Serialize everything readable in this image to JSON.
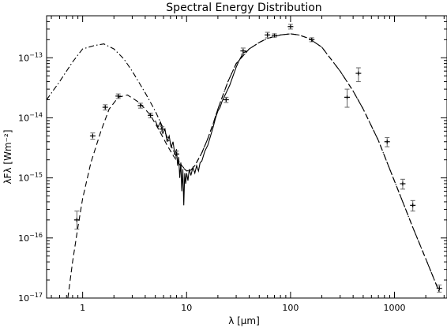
{
  "chart_data": {
    "type": "line",
    "title": "Spectral Energy Distribution",
    "xlabel": "λ [μm]",
    "ylabel": "λFλ [Wm⁻²]",
    "xscale": "log",
    "yscale": "log",
    "xlim": [
      0.45,
      3200
    ],
    "ylim": [
      1e-17,
      5e-13
    ],
    "x_ticks": [
      {
        "value": 1,
        "label": "1"
      },
      {
        "value": 10,
        "label": "10"
      },
      {
        "value": 100,
        "label": "100"
      },
      {
        "value": 1000,
        "label": "1000"
      }
    ],
    "y_ticks": [
      {
        "value": 1e-17,
        "base": "10",
        "exp": "−17"
      },
      {
        "value": 1e-16,
        "base": "10",
        "exp": "−16"
      },
      {
        "value": 1e-15,
        "base": "10",
        "exp": "−15"
      },
      {
        "value": 1e-14,
        "base": "10",
        "exp": "−14"
      },
      {
        "value": 1e-13,
        "base": "10",
        "exp": "−13"
      }
    ],
    "grid": false,
    "legend": "none",
    "series": [
      {
        "style": "dash-dot",
        "x": [
          0.45,
          0.6,
          0.8,
          1.0,
          1.3,
          1.6,
          2.0,
          2.5,
          3.0,
          4.0,
          5.0,
          6.0,
          7.0,
          8.0,
          9.0,
          10.0,
          11.0,
          12.0,
          14.0,
          16.0,
          18.0,
          20.0,
          25.0,
          30.0,
          40.0,
          50.0,
          60.0,
          80.0,
          100.0,
          120.0,
          150.0,
          200.0,
          300.0,
          400.0,
          500.0,
          700.0,
          900.0,
          1200.0,
          1500.0,
          2000.0,
          2700.0
        ],
        "y": [
          2e-14,
          4e-14,
          8.5e-14,
          1.4e-13,
          1.6e-13,
          1.7e-13,
          1.4e-13,
          9.5e-14,
          6e-14,
          2.6e-14,
          1.3e-14,
          6.5e-15,
          3.6e-15,
          2.2e-15,
          1.6e-15,
          1.3e-15,
          1.35e-15,
          1.6e-15,
          2.6e-15,
          4.5e-15,
          8e-15,
          1.4e-14,
          4e-14,
          8e-14,
          1.4e-13,
          1.8e-13,
          2.1e-13,
          2.4e-13,
          2.5e-13,
          2.4e-13,
          2.1e-13,
          1.5e-13,
          6e-14,
          2.8e-14,
          1.4e-14,
          4.2e-15,
          1.4e-15,
          4e-16,
          1.5e-16,
          4.5e-17,
          1.25e-17
        ]
      },
      {
        "style": "dash",
        "x": [
          0.72,
          0.8,
          0.9,
          1.0,
          1.2,
          1.5,
          1.8,
          2.2,
          2.7,
          3.5,
          4.5,
          5.5,
          6.5,
          7.5,
          8.5,
          10.0,
          11.0,
          12.0,
          14.0,
          16.0,
          18.0,
          20.0,
          25.0,
          30.0,
          40.0,
          50.0,
          60.0,
          80.0,
          100.0,
          120.0,
          150.0,
          200.0,
          300.0,
          400.0,
          500.0,
          700.0,
          900.0,
          1200.0,
          1500.0,
          2000.0,
          2700.0
        ],
        "y": [
          1e-17,
          4e-17,
          1.5e-16,
          4.5e-16,
          1.8e-15,
          6e-15,
          1.4e-14,
          2.2e-14,
          2.4e-14,
          1.8e-14,
          1.1e-14,
          6e-15,
          3.5e-15,
          2.3e-15,
          1.7e-15,
          1.3e-15,
          1.35e-15,
          1.6e-15,
          2.6e-15,
          4.5e-15,
          8e-15,
          1.4e-14,
          4e-14,
          8e-14,
          1.4e-13,
          1.8e-13,
          2.1e-13,
          2.4e-13,
          2.5e-13,
          2.4e-13,
          2.1e-13,
          1.5e-13,
          6e-14,
          2.8e-14,
          1.4e-14,
          4.2e-15,
          1.4e-15,
          4e-16,
          1.5e-16,
          4.5e-17,
          1.25e-17
        ]
      },
      {
        "style": "solid",
        "x": [
          5.0,
          5.3,
          5.6,
          5.9,
          6.2,
          6.5,
          6.8,
          7.1,
          7.4,
          7.7,
          8.0,
          8.2,
          8.4,
          8.6,
          8.8,
          9.0,
          9.2,
          9.4,
          9.6,
          9.8,
          10.0,
          10.3,
          10.6,
          11.0,
          11.5,
          12.0,
          12.5,
          13.0,
          13.5,
          14.0,
          15.0,
          16.0,
          17.0,
          18.0,
          19.0,
          20.0,
          21.0,
          22.0,
          24.0,
          26.0,
          28.0,
          30.0,
          32.0,
          35.0,
          38.0
        ],
        "y": [
          9e-15,
          7e-15,
          8.5e-15,
          5.5e-15,
          6.5e-15,
          4e-15,
          5e-15,
          3.2e-15,
          4e-15,
          2.5e-15,
          3e-15,
          1.6e-15,
          2.2e-15,
          1e-15,
          1.8e-15,
          6e-16,
          1.4e-15,
          3.5e-16,
          1.2e-15,
          8e-16,
          1.2e-15,
          9e-16,
          1.4e-15,
          1.1e-15,
          1.5e-15,
          1.2e-15,
          1.6e-15,
          1.3e-15,
          1.8e-15,
          1.9e-15,
          2.8e-15,
          3.5e-15,
          5e-15,
          7e-15,
          1e-14,
          1.3e-14,
          1.5e-14,
          1.9e-14,
          2.6e-14,
          3.5e-14,
          5e-14,
          7e-14,
          9e-14,
          1.2e-13,
          1.3e-13
        ]
      }
    ],
    "data_points": [
      {
        "x": 0.88,
        "y": 2e-16,
        "ylo": 1.4e-16,
        "yhi": 2.8e-16
      },
      {
        "x": 1.25,
        "y": 5e-15,
        "ylo": 4.4e-15,
        "yhi": 5.6e-15
      },
      {
        "x": 1.65,
        "y": 1.5e-14,
        "ylo": 1.35e-14,
        "yhi": 1.65e-14
      },
      {
        "x": 2.2,
        "y": 2.3e-14,
        "ylo": 2.1e-14,
        "yhi": 2.5e-14
      },
      {
        "x": 3.6,
        "y": 1.6e-14,
        "ylo": 1.45e-14,
        "yhi": 1.75e-14
      },
      {
        "x": 4.5,
        "y": 1.1e-14,
        "ylo": 1e-14,
        "yhi": 1.2e-14
      },
      {
        "x": 5.8,
        "y": 6.5e-15,
        "ylo": 5.9e-15,
        "yhi": 7.1e-15
      },
      {
        "x": 8.0,
        "y": 2.5e-15,
        "ylo": 2.2e-15,
        "yhi": 2.8e-15
      },
      {
        "x": 24.0,
        "y": 2e-14,
        "ylo": 1.8e-14,
        "yhi": 2.2e-14
      },
      {
        "x": 35.0,
        "y": 1.3e-13,
        "ylo": 1.15e-13,
        "yhi": 1.45e-13
      },
      {
        "x": 60.0,
        "y": 2.4e-13,
        "ylo": 2.15e-13,
        "yhi": 2.65e-13
      },
      {
        "x": 70.0,
        "y": 2.35e-13,
        "ylo": 2.2e-13,
        "yhi": 2.5e-13
      },
      {
        "x": 100.0,
        "y": 3.3e-13,
        "ylo": 3e-13,
        "yhi": 3.6e-13
      },
      {
        "x": 160.0,
        "y": 2e-13,
        "ylo": 1.85e-13,
        "yhi": 2.15e-13
      },
      {
        "x": 350.0,
        "y": 2.2e-14,
        "ylo": 1.5e-14,
        "yhi": 3e-14
      },
      {
        "x": 450.0,
        "y": 5.5e-14,
        "ylo": 4e-14,
        "yhi": 6.8e-14
      },
      {
        "x": 850.0,
        "y": 4e-15,
        "ylo": 3.3e-15,
        "yhi": 4.7e-15
      },
      {
        "x": 1200.0,
        "y": 8e-16,
        "ylo": 6.5e-16,
        "yhi": 9.5e-16
      },
      {
        "x": 1500.0,
        "y": 3.5e-16,
        "ylo": 2.8e-16,
        "yhi": 4.2e-16
      },
      {
        "x": 2700.0,
        "y": 1.45e-17,
        "ylo": 1.25e-17,
        "yhi": 1.65e-17
      }
    ]
  }
}
